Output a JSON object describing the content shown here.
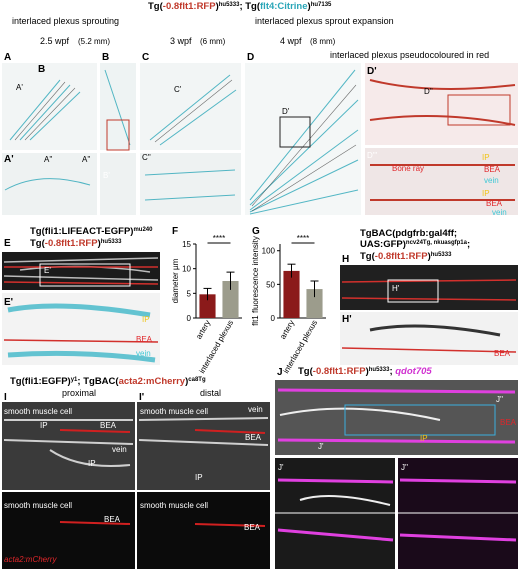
{
  "title": [
    "Tg(",
    "-0.8flt1:RFP",
    ")",
    "hu5333",
    "; Tg(",
    "flt4:Citrine",
    ")",
    "hu7135"
  ],
  "headers": [
    "interlaced plexus sprouting",
    "interlaced plexus sprout expansion",
    "interlaced plexus pseudocoloured in red"
  ],
  "stages": [
    "2.5 wpf",
    "(5.2 mm)",
    "3 wpf",
    "(6 mm)",
    "4 wpf",
    "(8 mm)"
  ],
  "e_title": [
    "Tg(",
    "fli1:LIFEACT-EGFP",
    ")",
    "mu240"
  ],
  "e_title2": [
    "Tg(",
    "-0.8flt1:RFP",
    ")",
    "hu5333"
  ],
  "h_title": [
    "TgBAC(",
    "pdgfrb:gal4ff;",
    "UAS:GFP",
    ")",
    "ncv24Tg, nkuasgfp1a",
    ";"
  ],
  "h_title2": [
    "Tg(",
    "-0.8flt1:RFP",
    ")",
    "hu5333"
  ],
  "i_title": [
    "Tg(",
    "fli1:EGFP",
    ")",
    "y1",
    "; TgBAC(",
    "acta2:mCherry",
    ")",
    "ca8Tg"
  ],
  "j_title": [
    "Tg(",
    "-0.8flt1:RFP",
    ")",
    "hu5333",
    "; ",
    "qdot705"
  ],
  "annotations": [
    "A",
    "A'",
    "B",
    "B",
    "B'",
    "A'",
    "A''",
    "A''",
    "C",
    "C'",
    "C''",
    "D",
    "D'",
    "D'",
    "D''",
    "D'''",
    "Bone ray",
    "IP",
    "BEA",
    "vein",
    "IP",
    "BEA",
    "vein",
    "E",
    "E'",
    "E'",
    "IP",
    "BEA",
    "vein",
    "H",
    "H'",
    "H'",
    "BEA",
    "I",
    "I'",
    "proximal",
    "distal",
    "smooth muscle cell",
    "IP",
    "BEA",
    "vein",
    "IP",
    "smooth muscle cell",
    "vein",
    "BEA",
    "IP",
    "smooth muscle cell",
    "BEA",
    "smooth muscle cell",
    "BEA",
    "acta2:mCherry",
    "J",
    "J'",
    "J''",
    "IP",
    "J'",
    "J''",
    "BEA"
  ],
  "chart_data": [
    {
      "type": "bar",
      "label": "F",
      "y_label": "diameter µm",
      "categories": [
        "artery",
        "interlaced plexus"
      ],
      "values": [
        4.8,
        7.5
      ],
      "errors": [
        1.2,
        1.8
      ],
      "colors": [
        "#8b1a1a",
        "#9c9c8c"
      ],
      "ylim": [
        0,
        15
      ],
      "yticks": [
        0,
        5,
        10,
        15
      ],
      "significance": "****"
    },
    {
      "type": "bar",
      "label": "G",
      "y_label": "flt1 fluorescence intensity",
      "categories": [
        "artery",
        "interlaced plexus"
      ],
      "values": [
        70,
        43
      ],
      "errors": [
        10,
        12
      ],
      "colors": [
        "#8b1a1a",
        "#9c9c8c"
      ],
      "ylim": [
        0,
        110
      ],
      "yticks": [
        0,
        50,
        100
      ],
      "significance": "****"
    }
  ]
}
